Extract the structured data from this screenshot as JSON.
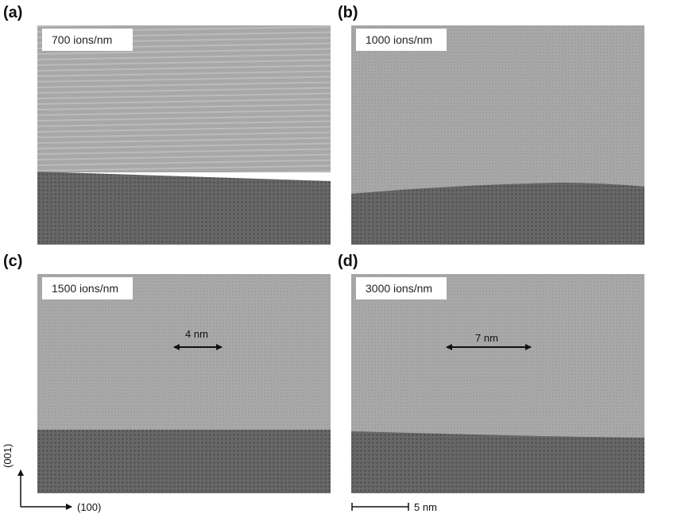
{
  "panels": [
    {
      "letter": "(a)",
      "dose": "700 ions/nm"
    },
    {
      "letter": "(b)",
      "dose": "1000 ions/nm"
    },
    {
      "letter": "(c)",
      "dose": "1500 ions/nm",
      "measurement": "4 nm"
    },
    {
      "letter": "(d)",
      "dose": "3000 ions/nm",
      "measurement": "7 nm"
    }
  ],
  "axes": {
    "vertical": "(001)",
    "horizontal": "(100)"
  },
  "scale_bar": {
    "label": "5 nm"
  },
  "colors": {
    "amorphous_gray": "#a6a6a6",
    "crystal_gray": "#5c5c5c",
    "text": "#111111",
    "label_bg": "#ffffff"
  }
}
